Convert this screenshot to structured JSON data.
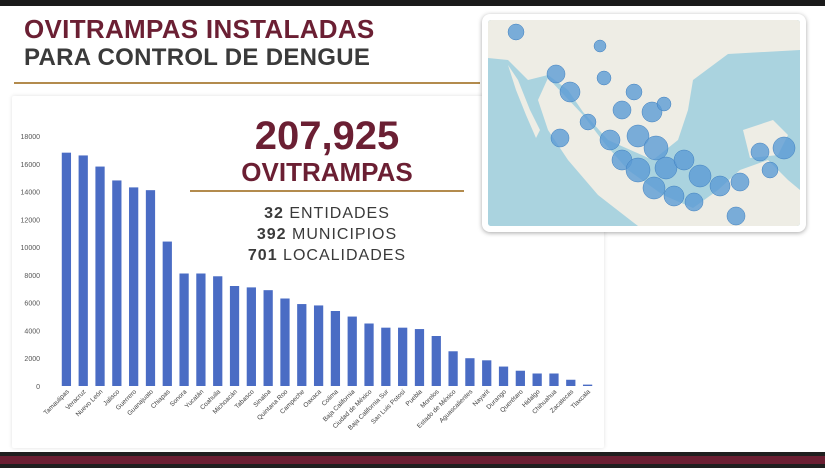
{
  "header": {
    "title_line1": "OVITRAMPAS INSTALADAS",
    "title_line2": "PARA CONTROL DE DENGUE"
  },
  "stats": {
    "total_number": "207,925",
    "total_label": "OVITRAMPAS",
    "lines": [
      {
        "number": "32",
        "label": "ENTIDADES"
      },
      {
        "number": "392",
        "label": "MUNICIPIOS"
      },
      {
        "number": "701",
        "label": "LOCALIDADES"
      }
    ]
  },
  "map": {
    "description_name": "Mexico ovitrap locations map"
  },
  "colors": {
    "accent": "#6b1f33",
    "gold": "#b38b4d",
    "bar": "#4a6cc4",
    "bubble": "#5b9bd5",
    "land": "#eeede5",
    "water": "#aad3df"
  },
  "chart_data": {
    "type": "bar",
    "title": "",
    "xlabel": "",
    "ylabel": "",
    "ylim": [
      0,
      18000
    ],
    "yticks": [
      0,
      2000,
      4000,
      6000,
      8000,
      10000,
      12000,
      14000,
      16000,
      18000
    ],
    "grid": false,
    "categories": [
      "Tamaulipas",
      "Veracruz",
      "Nuevo León",
      "Jalisco",
      "Guerrero",
      "Guanajuato",
      "Chiapas",
      "Sonora",
      "Yucatán",
      "Coahuila",
      "Michoacán",
      "Tabasco",
      "Sinaloa",
      "Quintana Roo",
      "Campeche",
      "Oaxaca",
      "Colima",
      "Baja California",
      "Ciudad de México",
      "Baja California Sur",
      "San Luis Potosí",
      "Puebla",
      "Morelos",
      "Estado de México",
      "Aguascalientes",
      "Nayarit",
      "Durango",
      "Querétaro",
      "Hidalgo",
      "Chihuahua",
      "Zacatecas",
      "Tlaxcala"
    ],
    "values": [
      16800,
      16600,
      15800,
      14800,
      14300,
      14100,
      10400,
      8100,
      8100,
      7900,
      7200,
      7100,
      6900,
      6300,
      5900,
      5800,
      5400,
      5000,
      4500,
      4200,
      4200,
      4100,
      3600,
      2500,
      2000,
      1850,
      1400,
      1100,
      900,
      900,
      450,
      100
    ]
  }
}
